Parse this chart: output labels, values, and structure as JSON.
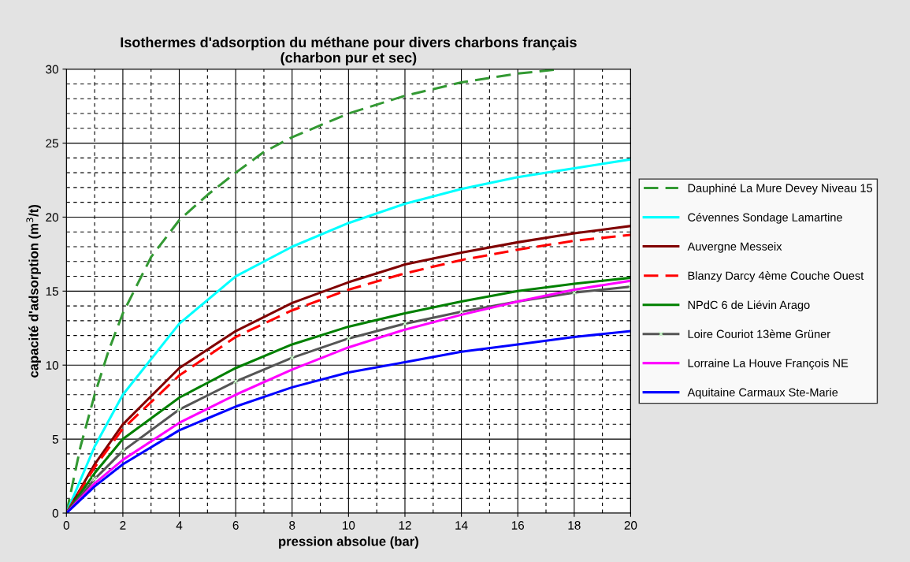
{
  "chart_data": {
    "type": "line",
    "title": "Isothermes d'adsorption du méthane pour divers charbons français\n(charbon pur et sec)",
    "xlabel": "pression absolue (bar)",
    "ylabel": "capacité d'adsorption (m$^{3}$/t)",
    "xlim": [
      0,
      20
    ],
    "xticks": [
      0,
      2,
      4,
      6,
      8,
      10,
      12,
      14,
      16,
      18,
      20
    ],
    "ylim": [
      0,
      30
    ],
    "yticks": [
      0,
      5,
      10,
      15,
      20,
      25,
      30
    ],
    "grid": true,
    "legend": "right",
    "marker": "none",
    "series": [
      {
        "name": "Dauphiné La Mure Devey Niveau 15",
        "color": "#339933",
        "line_style": "dashed",
        "x": [
          0,
          0.5,
          1,
          1.5,
          2,
          3,
          4,
          5,
          6,
          7,
          8,
          10,
          12,
          14,
          16,
          17.5
        ],
        "values": [
          0,
          4.5,
          8,
          11,
          13.5,
          17.3,
          19.8,
          21.5,
          23,
          24.4,
          25.4,
          27,
          28.2,
          29.1,
          29.7,
          30
        ]
      },
      {
        "name": "Cévennes Sondage Lamartine",
        "color": "#00ffff",
        "x": [
          0,
          1,
          2,
          4,
          6,
          8,
          10,
          12,
          14,
          16,
          18,
          20
        ],
        "values": [
          0,
          4.5,
          8,
          12.8,
          16,
          18,
          19.6,
          20.9,
          21.9,
          22.7,
          23.3,
          23.9
        ]
      },
      {
        "name": "Auvergne Messeix",
        "color": "#800000",
        "x": [
          0,
          1,
          2,
          4,
          6,
          8,
          10,
          12,
          14,
          16,
          18,
          20
        ],
        "values": [
          0,
          3.3,
          6,
          9.8,
          12.3,
          14.2,
          15.6,
          16.8,
          17.6,
          18.3,
          18.9,
          19.4
        ]
      },
      {
        "name": "Blanzy Darcy 4ème Couche Ouest",
        "color": "#ff0000",
        "line_style": "dashed",
        "x": [
          0,
          1,
          2,
          4,
          6,
          8,
          10,
          12,
          14,
          16,
          18,
          20
        ],
        "values": [
          0,
          3.1,
          5.7,
          9.3,
          11.9,
          13.7,
          15.1,
          16.2,
          17.1,
          17.8,
          18.4,
          18.8
        ]
      },
      {
        "name": "NPdC 6 de Liévin Arago",
        "color": "#008000",
        "x": [
          0,
          1,
          2,
          4,
          6,
          8,
          10,
          12,
          14,
          16,
          18,
          20
        ],
        "values": [
          0,
          2.7,
          5,
          7.8,
          9.8,
          11.4,
          12.6,
          13.5,
          14.3,
          15,
          15.5,
          15.9
        ]
      },
      {
        "name": "Loire Couriot 13ème Grüner",
        "color": "#555555",
        "marker": "cross",
        "x": [
          0,
          1,
          2,
          4,
          6,
          8,
          10,
          12,
          14,
          16,
          18,
          20
        ],
        "values": [
          0,
          2.3,
          4.2,
          7,
          8.9,
          10.5,
          11.8,
          12.8,
          13.6,
          14.3,
          14.9,
          15.3
        ]
      },
      {
        "name": "Lorraine La Houve François NE",
        "color": "#ff00ff",
        "x": [
          0,
          1,
          2,
          4,
          6,
          8,
          10,
          12,
          14,
          16,
          18,
          20
        ],
        "values": [
          0,
          2,
          3.6,
          6.1,
          8,
          9.7,
          11.2,
          12.4,
          13.4,
          14.3,
          15.1,
          15.7
        ]
      },
      {
        "name": "Aquitaine Carmaux Ste-Marie",
        "color": "#0000ff",
        "x": [
          0,
          1,
          2,
          4,
          6,
          8,
          10,
          12,
          14,
          16,
          18,
          20
        ],
        "values": [
          0,
          1.8,
          3.3,
          5.6,
          7.2,
          8.5,
          9.5,
          10.2,
          10.9,
          11.4,
          11.9,
          12.3
        ]
      }
    ]
  }
}
